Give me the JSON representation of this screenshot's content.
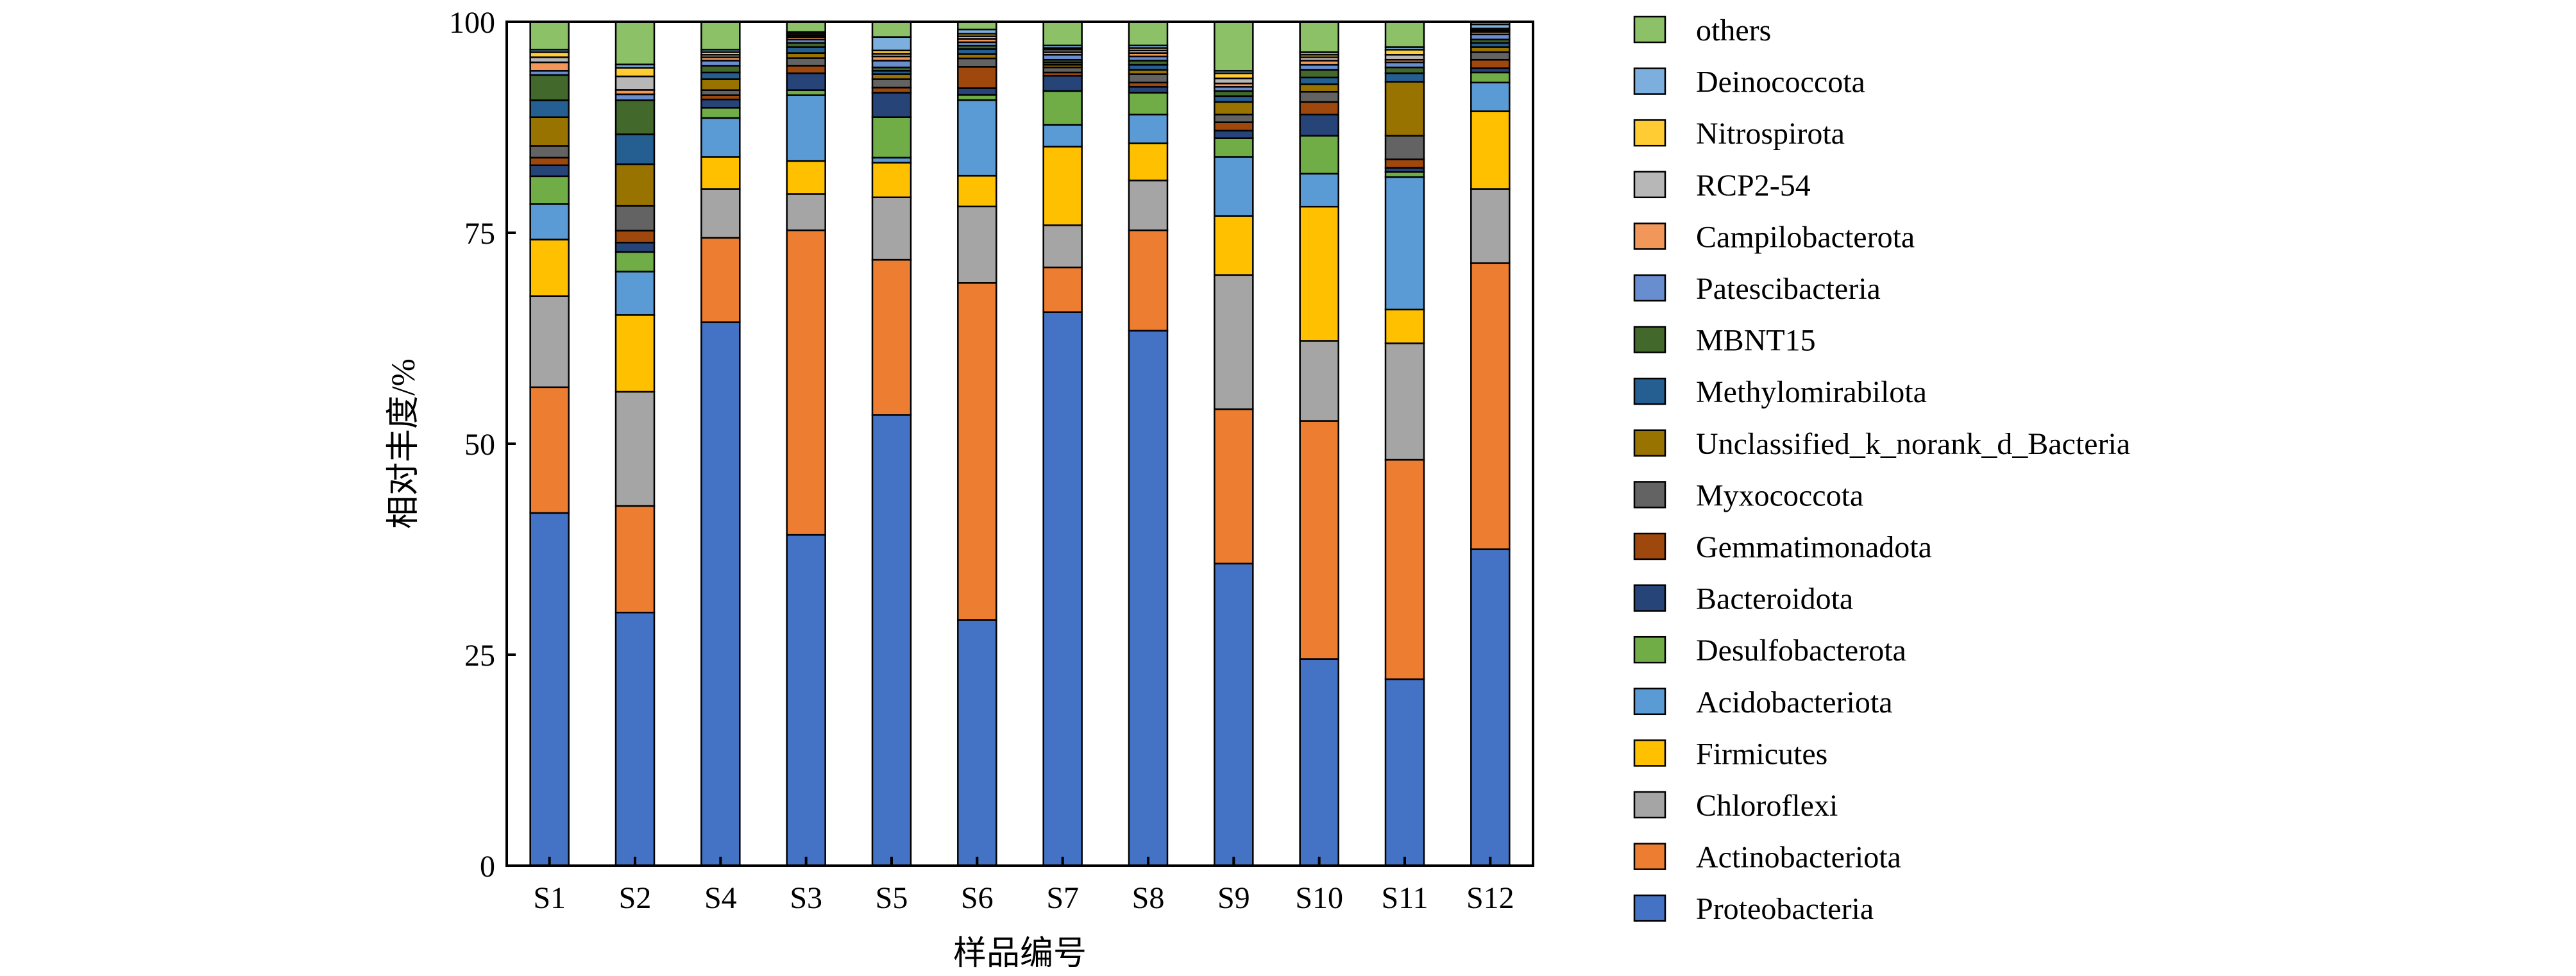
{
  "chart_data": {
    "type": "bar",
    "stacked": true,
    "title": "",
    "xlabel": "样品编号",
    "ylabel": "相对丰度/%",
    "ylim": [
      0,
      100
    ],
    "yticks": [
      "0",
      "25",
      "50",
      "75",
      "100"
    ],
    "grid": false,
    "legend_position": "right",
    "categories": [
      "S1",
      "S2",
      "S4",
      "S3",
      "S5",
      "S6",
      "S7",
      "S8",
      "S9",
      "S10",
      "S11",
      "S12"
    ],
    "series": [
      {
        "name": "Proteobacteria",
        "color": "#4472C4",
        "values": [
          41.8,
          29.7,
          64.4,
          39.2,
          53.4,
          28.9,
          65.6,
          63.4,
          35.8,
          24.5,
          22.1,
          37.5
        ]
      },
      {
        "name": "Actinobacteriota",
        "color": "#ED7D31",
        "values": [
          14.9,
          12.5,
          10.0,
          36.1,
          18.4,
          39.6,
          5.3,
          11.9,
          18.3,
          28.2,
          26.0,
          33.9
        ]
      },
      {
        "name": "Chloroflexi",
        "color": "#A5A5A5",
        "values": [
          10.8,
          13.4,
          5.8,
          4.3,
          7.4,
          9.0,
          5.0,
          5.9,
          15.9,
          9.5,
          13.8,
          8.8
        ]
      },
      {
        "name": "Firmicutes",
        "color": "#FFC000",
        "values": [
          6.7,
          9.0,
          3.8,
          3.9,
          4.1,
          3.6,
          9.3,
          4.4,
          7.0,
          15.9,
          4.0,
          9.2
        ]
      },
      {
        "name": "Acidobacteriota",
        "color": "#5B9BD5",
        "values": [
          4.2,
          5.1,
          4.6,
          7.8,
          0.6,
          8.9,
          2.6,
          3.4,
          7.0,
          3.9,
          15.7,
          3.4
        ]
      },
      {
        "name": "Desulfobacterota",
        "color": "#70AD47",
        "values": [
          3.3,
          2.3,
          1.2,
          0.6,
          4.8,
          0.6,
          4.0,
          2.6,
          2.2,
          4.5,
          0.6,
          1.2
        ]
      },
      {
        "name": "Bacteroidota",
        "color": "#264478",
        "values": [
          1.3,
          1.1,
          1.0,
          2.0,
          2.9,
          0.8,
          1.8,
          0.7,
          0.9,
          2.5,
          0.5,
          0.5
        ]
      },
      {
        "name": "Gemmatimonadota",
        "color": "#9E480E",
        "values": [
          0.9,
          1.4,
          0.5,
          0.9,
          0.6,
          2.5,
          0.4,
          0.5,
          1.0,
          1.5,
          1.0,
          1.0
        ]
      },
      {
        "name": "Myxococcota",
        "color": "#636363",
        "values": [
          1.4,
          2.9,
          0.6,
          0.9,
          1.0,
          1.0,
          0.6,
          1.0,
          0.9,
          1.2,
          2.8,
          0.9
        ]
      },
      {
        "name": "Unclassified_k_norank_d_Bacteria",
        "color": "#997300",
        "values": [
          3.4,
          4.9,
          1.3,
          0.6,
          0.6,
          0.5,
          0.3,
          0.5,
          1.5,
          0.9,
          6.4,
          0.6
        ]
      },
      {
        "name": "Methylomirabilota",
        "color": "#255E91",
        "values": [
          2.0,
          3.5,
          0.8,
          0.7,
          0.4,
          0.6,
          0.3,
          0.6,
          0.7,
          0.8,
          1.0,
          0.5
        ]
      },
      {
        "name": "MBNT15",
        "color": "#43682B",
        "values": [
          3.0,
          4.0,
          0.8,
          0.5,
          0.4,
          0.4,
          0.3,
          0.5,
          0.6,
          0.9,
          0.7,
          0.4
        ]
      },
      {
        "name": "Patescibacteria",
        "color": "#698ED0",
        "values": [
          0.5,
          0.7,
          0.6,
          0.4,
          0.8,
          0.4,
          0.6,
          0.5,
          0.5,
          0.6,
          0.6,
          0.6
        ]
      },
      {
        "name": "Campilobacterota",
        "color": "#F1975A",
        "values": [
          1.0,
          0.5,
          0.4,
          0.3,
          0.5,
          0.4,
          0.3,
          0.4,
          0.4,
          0.5,
          0.3,
          0.3
        ]
      },
      {
        "name": "RCP2-54",
        "color": "#B7B7B7",
        "values": [
          0.6,
          1.6,
          0.3,
          0.2,
          0.3,
          0.3,
          0.3,
          0.3,
          0.6,
          0.4,
          0.6,
          0.2
        ]
      },
      {
        "name": "Nitrospirota",
        "color": "#FFCD33",
        "values": [
          0.6,
          1.0,
          0.3,
          0.2,
          0.4,
          0.3,
          0.2,
          0.3,
          0.6,
          0.3,
          0.6,
          0.2
        ]
      },
      {
        "name": "Deinococcota",
        "color": "#7CAFDD",
        "values": [
          0.3,
          0.4,
          0.3,
          0.2,
          1.6,
          0.5,
          0.3,
          0.3,
          0.3,
          0.3,
          0.3,
          0.5
        ]
      },
      {
        "name": "others",
        "color": "#8CC168",
        "values": [
          3.3,
          5.0,
          3.3,
          1.2,
          1.8,
          0.9,
          2.8,
          2.8,
          5.8,
          3.6,
          3.0,
          0.3
        ]
      }
    ]
  }
}
